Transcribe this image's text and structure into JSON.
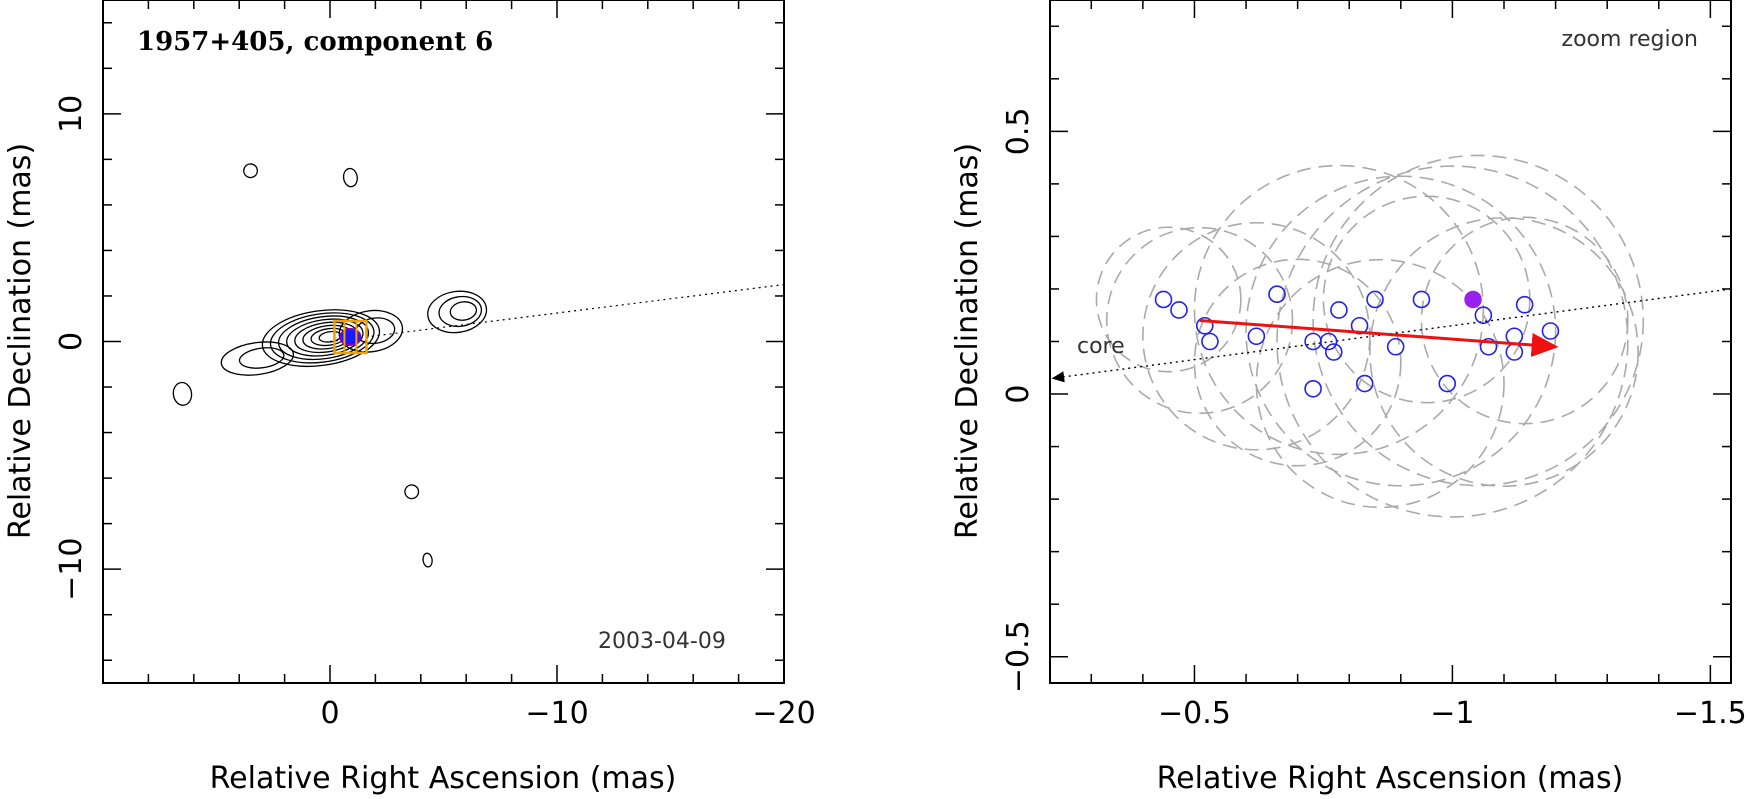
{
  "chart_data": [
    {
      "type": "contour",
      "title": "1957+405, component 6",
      "date": "2003-04-09",
      "xlabel": "Relative Right Ascension (mas)",
      "ylabel": "Relative Declination (mas)",
      "xlim": [
        10,
        -20
      ],
      "ylim": [
        -15,
        15
      ],
      "xticks": [
        0,
        -10,
        -20
      ],
      "xtick_labels": [
        "0",
        "−10",
        "−20"
      ],
      "yticks": [
        -10,
        0,
        10
      ],
      "ytick_labels": [
        "−10",
        "0",
        "10"
      ],
      "jet_axis": {
        "from": [
          0,
          0
        ],
        "to": [
          -20,
          2.5
        ]
      },
      "component_marker": {
        "x": -0.9,
        "y": 0.2
      },
      "blobs": [
        {
          "x": 0.4,
          "y": 0.15,
          "rx": 2.6,
          "ry": 1.2,
          "levels": 8
        },
        {
          "x": 3.2,
          "y": -0.75,
          "rx": 1.6,
          "ry": 0.7,
          "levels": 2
        },
        {
          "x": -1.8,
          "y": 0.45,
          "rx": 1.4,
          "ry": 0.9,
          "levels": 2
        },
        {
          "x": -5.6,
          "y": 1.3,
          "rx": 1.3,
          "ry": 0.9,
          "levels": 3
        },
        {
          "x": 6.5,
          "y": -2.3,
          "rx": 0.4,
          "ry": 0.5,
          "levels": 1
        },
        {
          "x": -0.9,
          "y": 7.2,
          "rx": 0.3,
          "ry": 0.4,
          "levels": 1
        },
        {
          "x": -3.6,
          "y": -6.6,
          "rx": 0.3,
          "ry": 0.3,
          "levels": 1
        },
        {
          "x": -4.3,
          "y": -9.6,
          "rx": 0.2,
          "ry": 0.3,
          "levels": 1
        },
        {
          "x": 3.5,
          "y": 7.5,
          "rx": 0.3,
          "ry": 0.3,
          "levels": 1
        }
      ]
    },
    {
      "type": "scatter",
      "label": "zoom region",
      "annotation": "core",
      "xlabel": "Relative Right Ascension (mas)",
      "ylabel": "Relative Declination (mas)",
      "xlim": [
        -0.22,
        -1.54
      ],
      "ylim": [
        -0.55,
        0.75
      ],
      "xticks": [
        -0.5,
        -1,
        -1.5
      ],
      "xtick_labels": [
        "−0.5",
        "−1",
        "−1.5"
      ],
      "yticks": [
        -0.5,
        0,
        0.5
      ],
      "ytick_labels": [
        "−0.5",
        "0",
        "0.5"
      ],
      "jet_axis": {
        "from": [
          -0.22,
          0.03
        ],
        "to": [
          -1.54,
          0.2
        ]
      },
      "points": [
        {
          "x": -0.44,
          "y": 0.18
        },
        {
          "x": -0.47,
          "y": 0.16
        },
        {
          "x": -0.52,
          "y": 0.13
        },
        {
          "x": -0.53,
          "y": 0.1
        },
        {
          "x": -0.62,
          "y": 0.11
        },
        {
          "x": -0.66,
          "y": 0.19
        },
        {
          "x": -0.73,
          "y": 0.1
        },
        {
          "x": -0.73,
          "y": 0.01
        },
        {
          "x": -0.76,
          "y": 0.1
        },
        {
          "x": -0.77,
          "y": 0.08
        },
        {
          "x": -0.78,
          "y": 0.16
        },
        {
          "x": -0.82,
          "y": 0.13
        },
        {
          "x": -0.83,
          "y": 0.02
        },
        {
          "x": -0.85,
          "y": 0.18
        },
        {
          "x": -0.89,
          "y": 0.09
        },
        {
          "x": -0.94,
          "y": 0.18
        },
        {
          "x": -0.99,
          "y": 0.02
        },
        {
          "x": -1.06,
          "y": 0.15
        },
        {
          "x": -1.07,
          "y": 0.09
        },
        {
          "x": -1.12,
          "y": 0.11
        },
        {
          "x": -1.12,
          "y": 0.08
        },
        {
          "x": -1.14,
          "y": 0.17
        },
        {
          "x": -1.19,
          "y": 0.12
        }
      ],
      "highlight": {
        "x": -1.04,
        "y": 0.18
      },
      "motion_arrow": {
        "from": [
          -0.51,
          0.14
        ],
        "to": [
          -1.2,
          0.09
        ]
      },
      "error_circles": [
        {
          "x": -0.51,
          "y": 0.14,
          "r": 0.18
        },
        {
          "x": -0.62,
          "y": 0.11,
          "r": 0.22
        },
        {
          "x": -0.78,
          "y": 0.16,
          "r": 0.28
        },
        {
          "x": -0.9,
          "y": 0.12,
          "r": 0.3
        },
        {
          "x": -1.0,
          "y": 0.1,
          "r": 0.34
        },
        {
          "x": -1.05,
          "y": 0.14,
          "r": 0.32
        },
        {
          "x": -1.1,
          "y": 0.08,
          "r": 0.26
        },
        {
          "x": -0.86,
          "y": 0.02,
          "r": 0.24
        },
        {
          "x": -0.95,
          "y": 0.18,
          "r": 0.2
        },
        {
          "x": -0.7,
          "y": 0.06,
          "r": 0.2
        },
        {
          "x": -1.14,
          "y": 0.14,
          "r": 0.2
        },
        {
          "x": -0.45,
          "y": 0.18,
          "r": 0.14
        }
      ]
    }
  ]
}
